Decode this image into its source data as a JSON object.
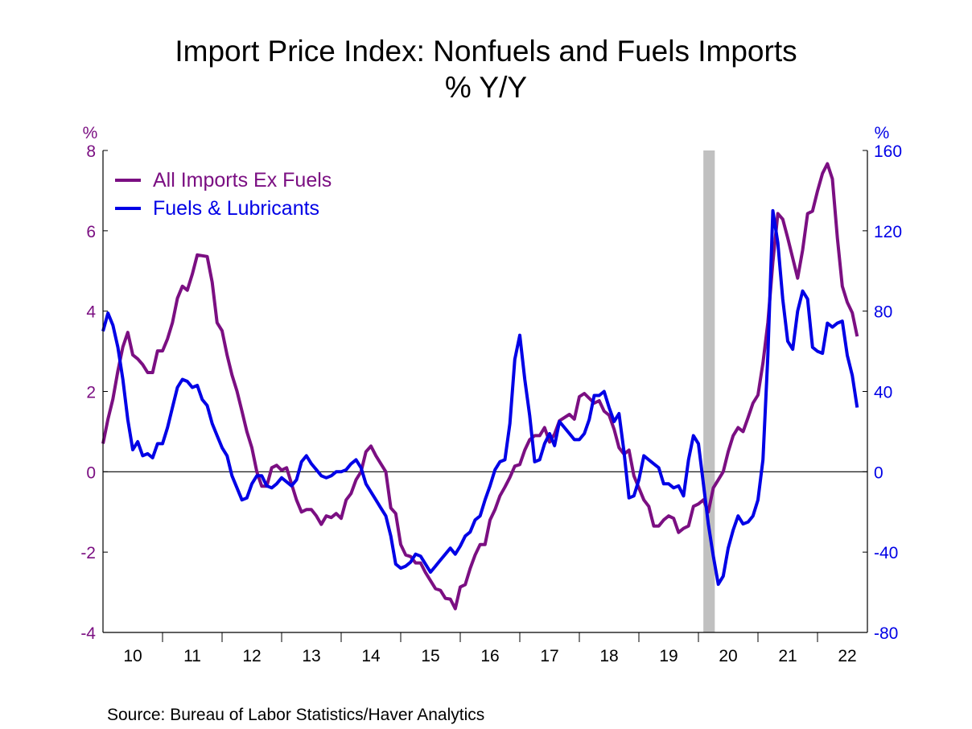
{
  "chart_data": {
    "type": "line",
    "title": "Import Price Index: Nonfuels and Fuels Imports",
    "subtitle": "% Y/Y",
    "left_axis": {
      "unit_label": "%",
      "ylim": [
        -4,
        8
      ],
      "ticks": [
        "8",
        "6",
        "4",
        "2",
        "0",
        "-2",
        "-4"
      ],
      "tick_values": [
        8,
        6,
        4,
        2,
        0,
        -2,
        -4
      ],
      "color": "#7B0F82"
    },
    "right_axis": {
      "unit_label": "%",
      "ylim": [
        -80,
        160
      ],
      "ticks": [
        "160",
        "120",
        "80",
        "40",
        "0",
        "-40",
        "-80"
      ],
      "tick_values": [
        160,
        120,
        80,
        40,
        0,
        -40,
        -80
      ],
      "color": "#0000E6"
    },
    "x_axis": {
      "start": "2010-01",
      "frequency": "monthly",
      "end": "2022-09",
      "tick_labels": [
        "10",
        "11",
        "12",
        "13",
        "14",
        "15",
        "16",
        "17",
        "18",
        "19",
        "20",
        "21",
        "22"
      ]
    },
    "recession_shading": {
      "start": "2020-02",
      "end": "2020-04",
      "color": "#C0C0C0"
    },
    "legend": {
      "placement": "top-left"
    },
    "grid": false,
    "zero_line": true,
    "series": [
      {
        "name": "All Imports Ex Fuels",
        "axis": "left",
        "color": "#7B0F82",
        "values": [
          0.7,
          1.31,
          1.81,
          2.51,
          3.11,
          3.47,
          2.91,
          2.81,
          2.67,
          2.47,
          2.47,
          3.01,
          3.01,
          3.31,
          3.71,
          4.32,
          4.62,
          4.52,
          4.92,
          5.4,
          5.38,
          5.36,
          4.72,
          3.71,
          3.51,
          2.91,
          2.41,
          2.01,
          1.51,
          1.0,
          0.6,
          0,
          -0.36,
          -0.36,
          0.1,
          0.16,
          0.04,
          0.1,
          -0.3,
          -0.7,
          -1.0,
          -0.94,
          -0.94,
          -1.1,
          -1.31,
          -1.1,
          -1.14,
          -1.04,
          -1.16,
          -0.7,
          -0.54,
          -0.2,
          0,
          0.5,
          0.64,
          0.4,
          0.2,
          0,
          -0.9,
          -1.04,
          -1.81,
          -2.07,
          -2.11,
          -2.27,
          -2.27,
          -2.51,
          -2.71,
          -2.91,
          -2.95,
          -3.15,
          -3.17,
          -3.41,
          -2.87,
          -2.81,
          -2.41,
          -2.07,
          -1.81,
          -1.81,
          -1.2,
          -0.94,
          -0.6,
          -0.38,
          -0.14,
          0.14,
          0.18,
          0.54,
          0.8,
          0.9,
          0.9,
          1.1,
          0.74,
          0.94,
          1.27,
          1.35,
          1.43,
          1.31,
          1.87,
          1.95,
          1.83,
          1.71,
          1.77,
          1.51,
          1.41,
          1.06,
          0.6,
          0.44,
          0.54,
          -0.1,
          -0.4,
          -0.7,
          -0.86,
          -1.35,
          -1.35,
          -1.2,
          -1.1,
          -1.16,
          -1.51,
          -1.41,
          -1.35,
          -0.86,
          -0.8,
          -0.7,
          -1.0,
          -0.4,
          -0.2,
          0,
          0.5,
          0.9,
          1.1,
          1.0,
          1.35,
          1.71,
          1.91,
          2.71,
          3.71,
          5.22,
          6.43,
          6.29,
          5.82,
          5.32,
          4.82,
          5.52,
          6.43,
          6.49,
          6.99,
          7.43,
          7.67,
          7.29,
          5.82,
          4.62,
          4.22,
          3.96,
          3.37
        ]
      },
      {
        "name": "Fuels & Lubricants",
        "axis": "right",
        "color": "#0000E6",
        "values": [
          70,
          79,
          73,
          62,
          46,
          26,
          11,
          15,
          8,
          9,
          7,
          14,
          14,
          22,
          32,
          42,
          46,
          45,
          42,
          43,
          36,
          33,
          24,
          18,
          12,
          8,
          -2,
          -8,
          -14,
          -13,
          -6,
          -2,
          -2,
          -7,
          -8,
          -6,
          -3,
          -5,
          -7,
          -4,
          5,
          8,
          4,
          1,
          -2,
          -3,
          -2,
          0,
          0,
          1,
          4,
          6,
          2,
          -6,
          -10,
          -14,
          -18,
          -22,
          -32,
          -46,
          -48,
          -47,
          -45,
          -41,
          -42,
          -46,
          -50,
          -47,
          -44,
          -41,
          -38,
          -41,
          -37,
          -32,
          -30,
          -24,
          -22,
          -14,
          -7,
          1,
          5,
          6,
          24,
          56,
          68,
          46,
          28,
          5,
          6,
          14,
          19,
          13,
          25,
          22,
          19,
          16,
          16,
          19,
          26,
          38,
          38,
          40,
          32,
          25,
          29,
          10,
          -13,
          -12,
          -4,
          8,
          6,
          4,
          2,
          -6,
          -6,
          -8,
          -7,
          -12,
          6,
          18,
          14,
          -6,
          -26,
          -42,
          -56,
          -52,
          -38,
          -29,
          -22,
          -26,
          -25,
          -22,
          -14,
          6,
          58,
          130,
          114,
          86,
          65,
          61,
          80,
          90,
          86,
          62,
          60,
          59,
          74,
          72,
          74,
          75,
          58,
          48,
          32
        ]
      }
    ],
    "source": "Source:  Bureau of Labor Statistics/Haver Analytics"
  }
}
